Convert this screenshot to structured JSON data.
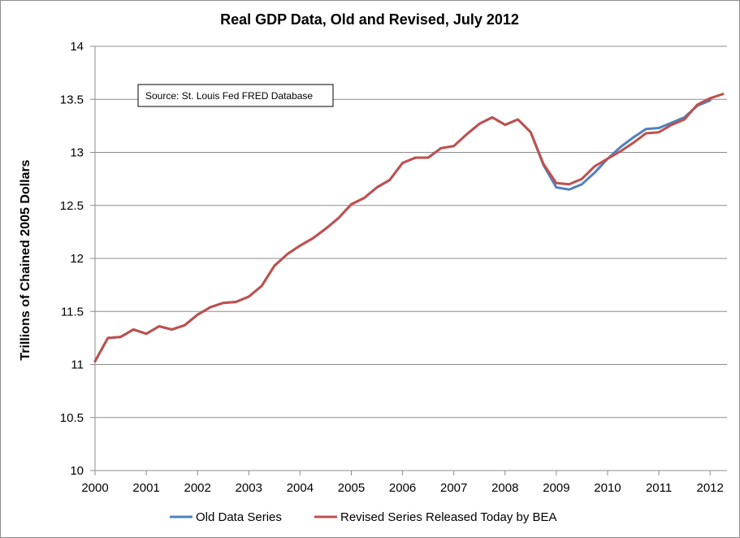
{
  "chart_data": {
    "type": "line",
    "title": "Real GDP Data, Old and Revised, July 2012",
    "xlabel": "",
    "ylabel": "Trillions of Chained 2005 Dollars",
    "xlim": [
      2000,
      2012.33
    ],
    "ylim": [
      10,
      14
    ],
    "x_ticks": [
      "2000",
      "2001",
      "2002",
      "2003",
      "2004",
      "2005",
      "2006",
      "2007",
      "2008",
      "2009",
      "2010",
      "2011",
      "2012"
    ],
    "y_ticks": [
      "10",
      "10.5",
      "11",
      "11.5",
      "12",
      "12.5",
      "13",
      "13.5",
      "14"
    ],
    "grid": "horizontal",
    "legend_position": "bottom",
    "annotation": "Source: St. Louis Fed FRED Database",
    "x": [
      2000.0,
      2000.25,
      2000.5,
      2000.75,
      2001.0,
      2001.25,
      2001.5,
      2001.75,
      2002.0,
      2002.25,
      2002.5,
      2002.75,
      2003.0,
      2003.25,
      2003.5,
      2003.75,
      2004.0,
      2004.25,
      2004.5,
      2004.75,
      2005.0,
      2005.25,
      2005.5,
      2005.75,
      2006.0,
      2006.25,
      2006.5,
      2006.75,
      2007.0,
      2007.25,
      2007.5,
      2007.75,
      2008.0,
      2008.25,
      2008.5,
      2008.75,
      2009.0,
      2009.25,
      2009.5,
      2009.75,
      2010.0,
      2010.25,
      2010.5,
      2010.75,
      2011.0,
      2011.25,
      2011.5,
      2011.75,
      2012.0,
      2012.25
    ],
    "series": [
      {
        "name": "Old Data Series",
        "color": "#4f81bd",
        "values": [
          11.03,
          11.25,
          11.26,
          11.33,
          11.29,
          11.36,
          11.33,
          11.37,
          11.47,
          11.54,
          11.58,
          11.59,
          11.64,
          11.74,
          11.93,
          12.04,
          12.12,
          12.19,
          12.28,
          12.38,
          12.51,
          12.57,
          12.67,
          12.74,
          12.9,
          12.95,
          12.95,
          13.04,
          13.06,
          13.17,
          13.27,
          13.33,
          13.26,
          13.31,
          13.19,
          12.88,
          12.67,
          12.65,
          12.7,
          12.81,
          12.94,
          13.05,
          13.14,
          13.22,
          13.23,
          13.28,
          13.33,
          13.44,
          13.49,
          null
        ]
      },
      {
        "name": "Revised Series Released Today by BEA",
        "color": "#c0504d",
        "values": [
          11.03,
          11.25,
          11.26,
          11.33,
          11.29,
          11.36,
          11.33,
          11.37,
          11.47,
          11.54,
          11.58,
          11.59,
          11.64,
          11.74,
          11.93,
          12.04,
          12.12,
          12.19,
          12.28,
          12.38,
          12.51,
          12.57,
          12.67,
          12.74,
          12.9,
          12.95,
          12.95,
          13.04,
          13.06,
          13.17,
          13.27,
          13.33,
          13.26,
          13.31,
          13.19,
          12.89,
          12.71,
          12.7,
          12.75,
          12.87,
          12.94,
          13.01,
          13.09,
          13.18,
          13.19,
          13.26,
          13.31,
          13.45,
          13.51,
          13.55
        ]
      }
    ]
  }
}
